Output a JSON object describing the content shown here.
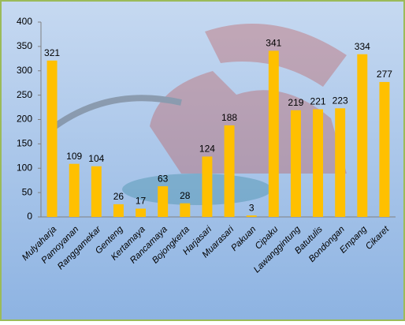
{
  "chart_data": {
    "type": "bar",
    "categories": [
      "Mulyaharja",
      "Pamoyanan",
      "Ranggamekar",
      "Genteng",
      "Kertamaya",
      "Rancamaya",
      "Bojongkerta",
      "Harjasari",
      "Muarasari",
      "Pakuan",
      "Cipaku",
      "Lawanggintung",
      "Batutulis",
      "Bondongan",
      "Empang",
      "Cikaret"
    ],
    "values": [
      321,
      109,
      104,
      26,
      17,
      63,
      28,
      124,
      188,
      3,
      341,
      219,
      221,
      223,
      334,
      277
    ],
    "color": "#ffc000",
    "ylim": [
      0,
      400
    ],
    "yticks": [
      0,
      50,
      100,
      150,
      200,
      250,
      300,
      350,
      400
    ],
    "grid": false
  }
}
